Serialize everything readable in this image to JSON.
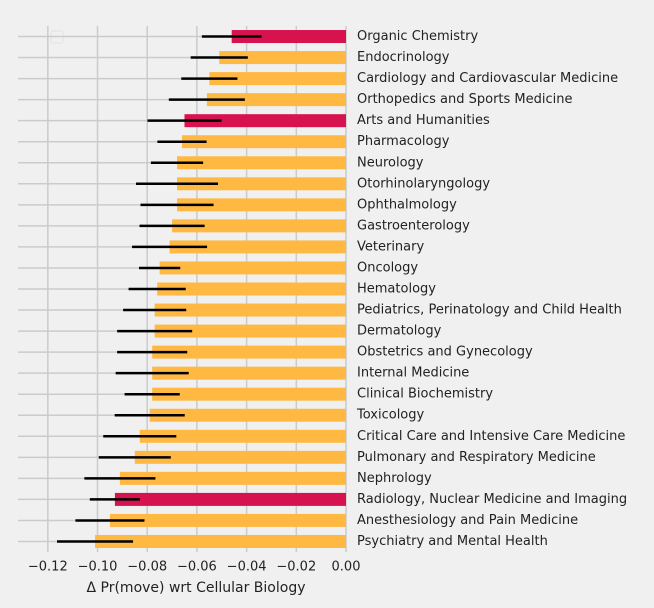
{
  "chart_data": {
    "type": "barh",
    "xlabel": "Δ Pr(move) wrt Cellular Biology",
    "categories": [
      "Organic Chemistry",
      "Endocrinology",
      "Cardiology and Cardiovascular Medicine",
      "Orthopedics and Sports Medicine",
      "Arts and Humanities",
      "Pharmacology",
      "Neurology",
      "Otorhinolaryngology",
      "Ophthalmology",
      "Gastroenterology",
      "Veterinary",
      "Oncology",
      "Hematology",
      "Pediatrics, Perinatology and Child Health",
      "Dermatology",
      "Obstetrics and Gynecology",
      "Internal Medicine",
      "Clinical Biochemistry",
      "Toxicology",
      "Critical Care and Intensive Care Medicine",
      "Pulmonary and Respiratory Medicine",
      "Nephrology",
      "Radiology, Nuclear Medicine and Imaging",
      "Anesthesiology and Pain Medicine",
      "Psychiatry and Mental Health"
    ],
    "values": [
      -0.046,
      -0.051,
      -0.055,
      -0.056,
      -0.065,
      -0.066,
      -0.068,
      -0.068,
      -0.068,
      -0.07,
      -0.071,
      -0.075,
      -0.076,
      -0.077,
      -0.077,
      -0.078,
      -0.078,
      -0.078,
      -0.079,
      -0.083,
      -0.085,
      -0.091,
      -0.093,
      -0.095,
      -0.101
    ],
    "errors": [
      0.012,
      0.0115,
      0.0113,
      0.0153,
      0.0149,
      0.0099,
      0.0105,
      0.0165,
      0.0147,
      0.0131,
      0.0151,
      0.0083,
      0.0115,
      0.0127,
      0.0151,
      0.0141,
      0.0147,
      0.0111,
      0.0141,
      0.0147,
      0.0145,
      0.0143,
      0.0101,
      0.0139,
      0.0153
    ],
    "colors": [
      "#d6134f",
      "#ffb943",
      "#ffb943",
      "#ffb943",
      "#d6134f",
      "#ffb943",
      "#ffb943",
      "#ffb943",
      "#ffb943",
      "#ffb943",
      "#ffb943",
      "#ffb943",
      "#ffb943",
      "#ffb943",
      "#ffb943",
      "#ffb943",
      "#ffb943",
      "#ffb943",
      "#ffb943",
      "#ffb943",
      "#ffb943",
      "#ffb943",
      "#d6134f",
      "#ffb943",
      "#ffb943"
    ],
    "error_color": "#000000",
    "xlim": [
      -0.132,
      0
    ],
    "xticks": [
      {
        "value": -0.12,
        "label": "−0.12"
      },
      {
        "value": -0.1,
        "label": "−0.10"
      },
      {
        "value": -0.08,
        "label": "−0.08"
      },
      {
        "value": -0.06,
        "label": "−0.06"
      },
      {
        "value": -0.04,
        "label": "−0.04"
      },
      {
        "value": -0.02,
        "label": "−0.02"
      },
      {
        "value": 0,
        "label": "0.00"
      }
    ],
    "grid": true
  }
}
